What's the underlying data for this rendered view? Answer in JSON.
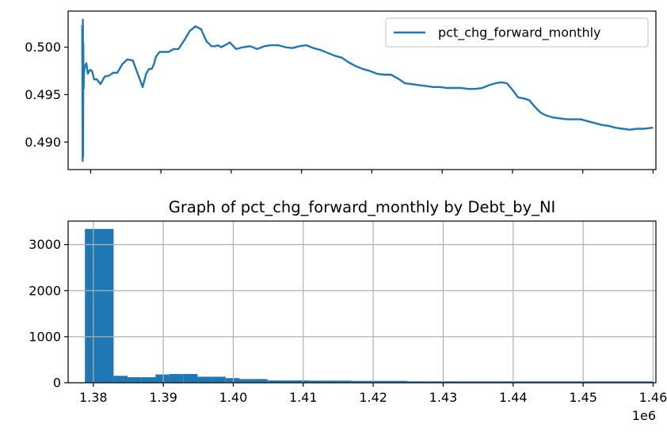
{
  "colors": {
    "series": "#1f77b4",
    "grid": "#b0b0b0",
    "text": "#000000",
    "frame": "#000000"
  },
  "chart_data": [
    {
      "type": "line",
      "title": "",
      "xlabel": "",
      "ylabel": "",
      "xlim": [
        1376800,
        1460400
      ],
      "ylim": [
        0.4871,
        0.5038
      ],
      "yticks": [
        0.49,
        0.495,
        0.5
      ],
      "ytick_labels": [
        "0.490",
        "0.495",
        "0.500"
      ],
      "xticks": [
        1380000,
        1390000,
        1400000,
        1410000,
        1420000,
        1430000,
        1440000,
        1450000,
        1460000
      ],
      "xtick_labels_visible": false,
      "grid": false,
      "legend": {
        "position": "top-right",
        "entries": [
          "pct_chg_forward_monthly"
        ]
      },
      "series": [
        {
          "name": "pct_chg_forward_monthly",
          "x": [
            1378800,
            1378870,
            1378900,
            1378930,
            1378960,
            1379000,
            1379050,
            1379100,
            1379200,
            1379400,
            1379600,
            1379900,
            1380200,
            1380500,
            1380900,
            1381400,
            1382000,
            1382600,
            1383200,
            1383800,
            1384500,
            1385200,
            1386000,
            1386800,
            1387400,
            1387900,
            1388300,
            1388700,
            1389000,
            1389300,
            1389800,
            1390400,
            1391100,
            1391800,
            1392500,
            1393300,
            1394100,
            1394900,
            1395700,
            1396500,
            1397200,
            1397700,
            1398100,
            1398600,
            1399100,
            1399800,
            1400700,
            1401700,
            1402700,
            1403700,
            1404700,
            1405700,
            1406700,
            1407700,
            1408700,
            1409700,
            1410700,
            1411700,
            1412700,
            1413700,
            1414700,
            1415700,
            1416700,
            1417700,
            1418700,
            1419700,
            1420700,
            1421700,
            1422700,
            1423700,
            1424700,
            1425700,
            1426700,
            1427700,
            1428700,
            1429700,
            1430700,
            1431700,
            1432700,
            1433700,
            1434700,
            1435700,
            1436700,
            1437600,
            1438400,
            1439200,
            1440000,
            1440800,
            1441600,
            1442400,
            1443200,
            1444000,
            1444800,
            1445700,
            1446700,
            1447700,
            1448700,
            1449700,
            1450700,
            1451700,
            1452700,
            1453700,
            1454700,
            1455700,
            1456700,
            1457700,
            1458700,
            1459700,
            1460000
          ],
          "y": [
            0.5023,
            0.488,
            0.5029,
            0.4885,
            0.5004,
            0.4956,
            0.497,
            0.4976,
            0.498,
            0.4983,
            0.4972,
            0.4976,
            0.4975,
            0.4966,
            0.4966,
            0.4961,
            0.4969,
            0.497,
            0.4973,
            0.4973,
            0.4982,
            0.4987,
            0.4986,
            0.497,
            0.4958,
            0.4972,
            0.4977,
            0.4977,
            0.4982,
            0.499,
            0.4995,
            0.4995,
            0.4995,
            0.4998,
            0.4998,
            0.5007,
            0.5017,
            0.5022,
            0.5019,
            0.5006,
            0.5001,
            0.5001,
            0.5002,
            0.5,
            0.5002,
            0.5005,
            0.4998,
            0.5,
            0.5001,
            0.4998,
            0.5001,
            0.5002,
            0.5002,
            0.5,
            0.4999,
            0.5001,
            0.5002,
            0.4999,
            0.4997,
            0.4994,
            0.4991,
            0.4989,
            0.4984,
            0.498,
            0.4977,
            0.4975,
            0.4972,
            0.4971,
            0.4971,
            0.4967,
            0.4962,
            0.4961,
            0.496,
            0.4959,
            0.4958,
            0.4958,
            0.4957,
            0.4957,
            0.4957,
            0.4956,
            0.4956,
            0.4957,
            0.496,
            0.4962,
            0.4963,
            0.4962,
            0.4955,
            0.4947,
            0.4946,
            0.4944,
            0.4937,
            0.4931,
            0.4928,
            0.4926,
            0.4925,
            0.4924,
            0.4924,
            0.4924,
            0.4922,
            0.492,
            0.4918,
            0.4917,
            0.4915,
            0.4914,
            0.4913,
            0.4914,
            0.4914,
            0.4915,
            0.4915
          ]
        }
      ]
    },
    {
      "type": "bar",
      "title": "Graph of pct_chg_forward_monthly by Debt_by_NI",
      "xlabel": "",
      "ylabel": "",
      "offset_label": "1e6",
      "xlim": [
        1.3764,
        1.4604
      ],
      "ylim": [
        0,
        3510
      ],
      "xticks": [
        1.38,
        1.39,
        1.4,
        1.41,
        1.42,
        1.43,
        1.44,
        1.45,
        1.46
      ],
      "xtick_labels": [
        "1.38",
        "1.39",
        "1.40",
        "1.41",
        "1.42",
        "1.43",
        "1.44",
        "1.45",
        "1.46"
      ],
      "yticks": [
        0,
        1000,
        2000,
        3000
      ],
      "ytick_labels": [
        "0",
        "1000",
        "2000",
        "3000"
      ],
      "grid": true,
      "bin_edges": [
        1.3788,
        1.3829,
        1.3849,
        1.3869,
        1.3889,
        1.3909,
        1.3929,
        1.3949,
        1.3969,
        1.3989,
        1.4009,
        1.4029,
        1.4049,
        1.4069,
        1.4089,
        1.4109,
        1.4129,
        1.4149,
        1.4169,
        1.4189,
        1.4209,
        1.4249,
        1.46
      ],
      "values": [
        3340,
        150,
        120,
        120,
        180,
        190,
        190,
        130,
        130,
        100,
        80,
        80,
        50,
        50,
        50,
        45,
        45,
        45,
        40,
        40,
        40,
        30
      ]
    }
  ]
}
